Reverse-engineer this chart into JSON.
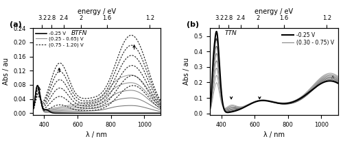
{
  "panel_a": {
    "title": "BTFN",
    "xlabel": "λ / nm",
    "ylabel": "Abs / au",
    "top_xlabel": "energy / eV",
    "xlim": [
      330,
      1100
    ],
    "ylim": [
      -0.005,
      0.24
    ],
    "yticks": [
      0.0,
      0.04,
      0.08,
      0.12,
      0.16,
      0.2,
      0.24
    ],
    "label": "(a)",
    "legend_entries": [
      "-0.25 V",
      "(0.25 - 0.65) V",
      "(0.75 - 1.20) V"
    ],
    "energy_ticks_nm": [
      387.5,
      443.0,
      517.5,
      620.0,
      775.0,
      1033.0
    ],
    "energy_tick_labels": [
      "3.2",
      "2.8",
      "2.4",
      "2",
      "1.6",
      "1.2"
    ],
    "n_gray": 5,
    "n_dot": 6
  },
  "panel_b": {
    "title": "TTN",
    "xlabel": "λ / nm",
    "ylabel": "Abs / au",
    "top_xlabel": "energy / eV",
    "xlim": [
      330,
      1100
    ],
    "ylim": [
      -0.01,
      0.55
    ],
    "yticks": [
      0.0,
      0.1,
      0.2,
      0.3,
      0.4,
      0.5
    ],
    "label": "(b)",
    "legend_entries": [
      "-0.25 V",
      "(0.30 - 0.75) V"
    ],
    "energy_ticks_nm": [
      387.5,
      443.0,
      517.5,
      620.0,
      775.0,
      1033.0
    ],
    "energy_tick_labels": [
      "3.2",
      "2.8",
      "2.4",
      "2",
      "1.6",
      "1.2"
    ],
    "n_gray": 7
  }
}
